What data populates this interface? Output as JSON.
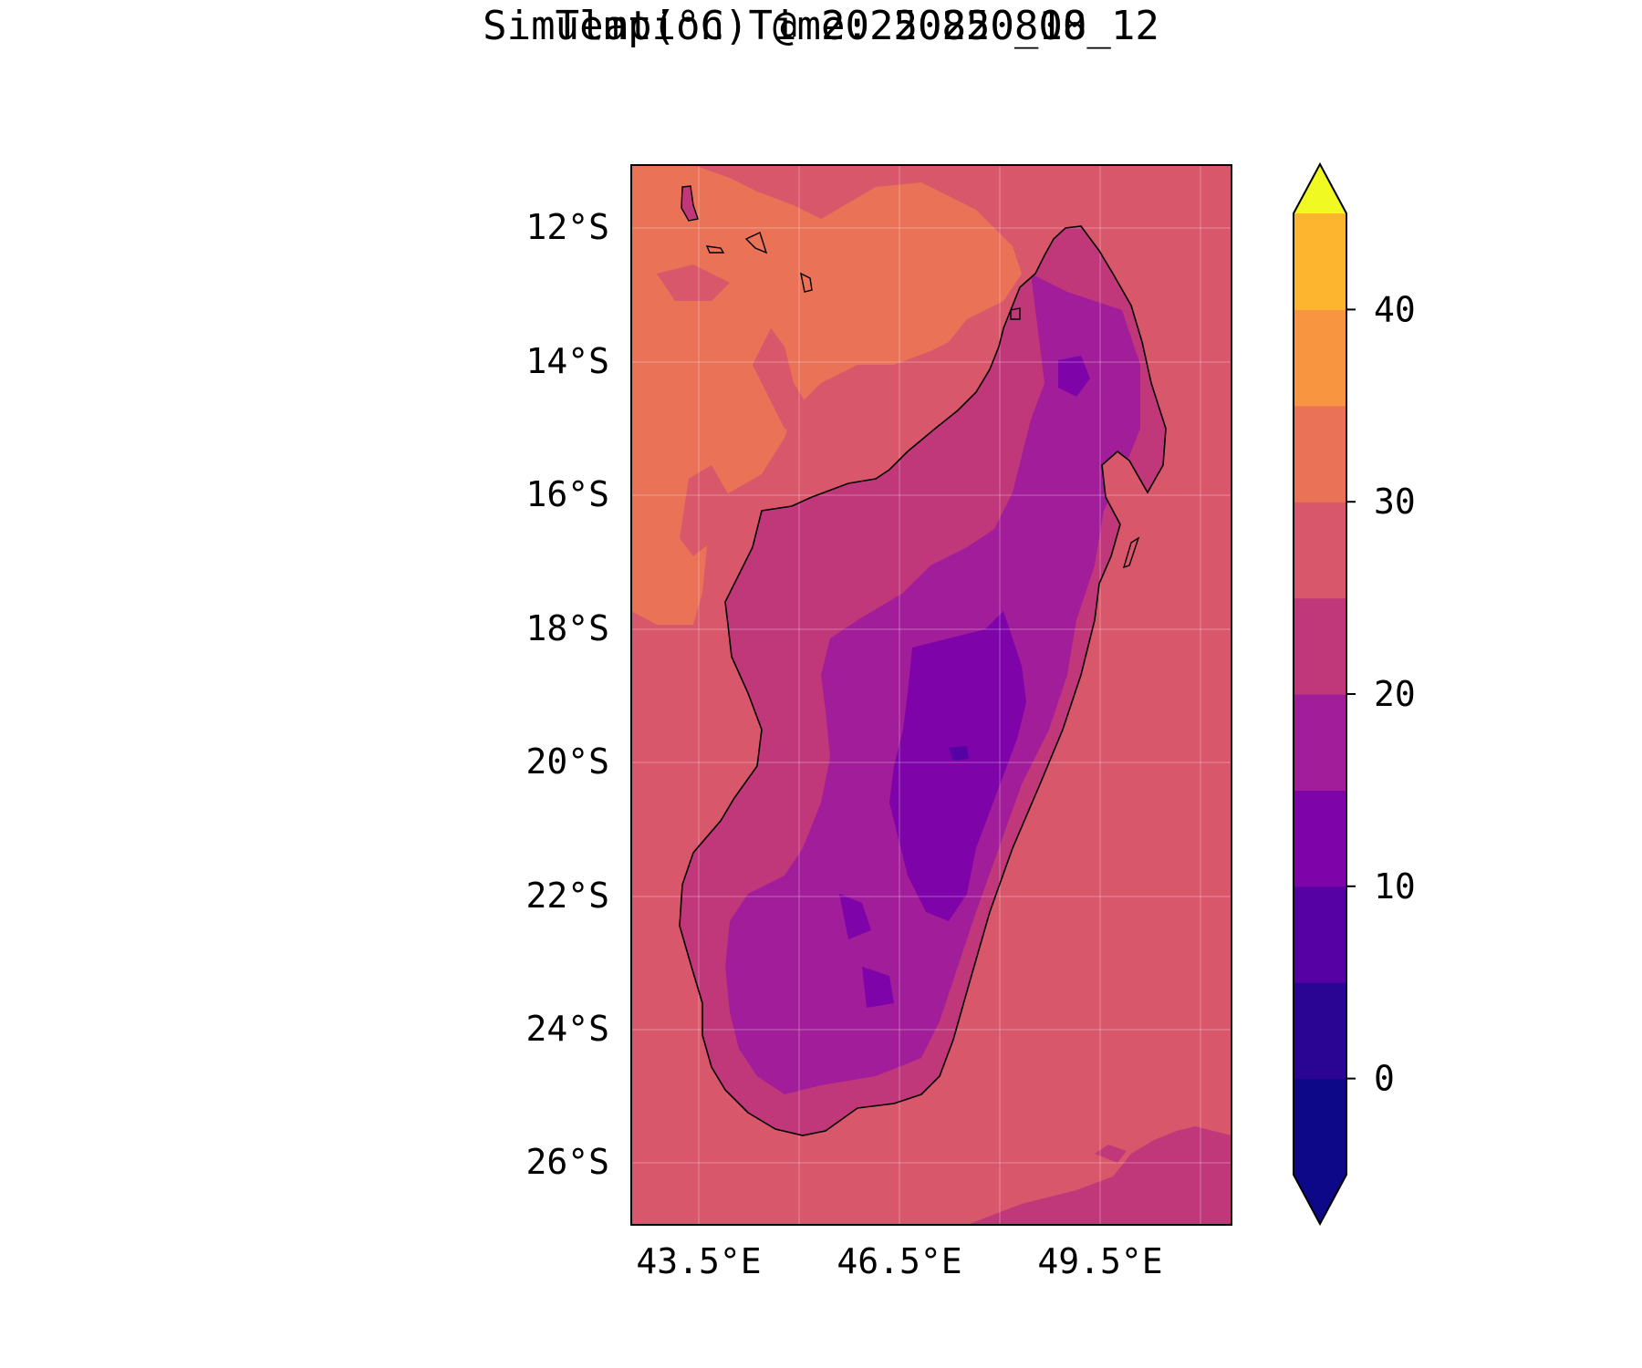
{
  "title": {
    "line1": "Temp(°C) @ 20250820_00",
    "line2": "Simulation Time: 20250818_12"
  },
  "map": {
    "region": "Madagascar",
    "lat_ticks": [
      "12°S",
      "14°S",
      "16°S",
      "18°S",
      "20°S",
      "22°S",
      "24°S",
      "26°S"
    ],
    "lon_ticks": [
      "43.5°E",
      "46.5°E",
      "49.5°E"
    ],
    "extent": {
      "lon_min": 42.5,
      "lon_max": 51.5,
      "lat_min": -26.9,
      "lat_max": -11.1
    },
    "gridlines": true,
    "coastline": true
  },
  "colorbar": {
    "units": "°C",
    "levels": [
      -5,
      0,
      5,
      10,
      15,
      20,
      25,
      30,
      35,
      40,
      45
    ],
    "tick_labels": [
      "0",
      "10",
      "20",
      "30",
      "40"
    ],
    "tick_values": [
      0,
      10,
      20,
      30,
      40
    ],
    "extend": "both",
    "colors": [
      "#0d0887",
      "#2a0593",
      "#5601a4",
      "#7e03a8",
      "#a21d9a",
      "#c1387a",
      "#d8576b",
      "#e97257",
      "#f89540",
      "#fdb42f",
      "#f0f921"
    ],
    "under_color": "#0d0887",
    "over_color": "#f0f921"
  },
  "fields": {
    "ocean_color": "#d8576b",
    "warm_sea_color": "#e97257",
    "cool_sea_color": "#c1387a",
    "land_lowland_color": "#c1387a",
    "land_plateau_color": "#a21d9a",
    "land_highland_color": "#7e03a8",
    "land_peak_color": "#5601a4"
  }
}
